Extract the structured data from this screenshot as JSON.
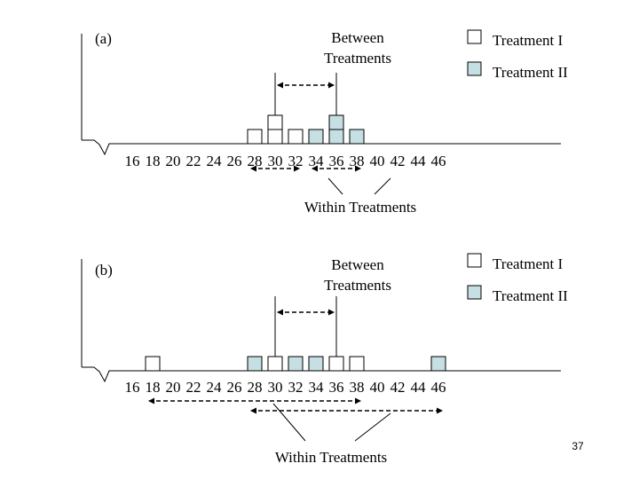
{
  "slide_number": "37",
  "legend": {
    "treatment1": {
      "label": "Treatment I",
      "color": "#ffffff"
    },
    "treatment2": {
      "label": "Treatment II",
      "color": "#c5dfe2"
    }
  },
  "annotations": {
    "between_line1": "Between",
    "between_line2": "Treatments",
    "within": "Within Treatments"
  },
  "axis": {
    "ticks": [
      16,
      18,
      20,
      22,
      24,
      26,
      28,
      30,
      32,
      34,
      36,
      38,
      40,
      42,
      44,
      46
    ],
    "min": 16,
    "max": 46
  },
  "panels": [
    {
      "id": "a",
      "label": "(a)",
      "treatment1_scores": [
        28,
        30,
        30,
        32
      ],
      "treatment2_scores": [
        34,
        36,
        36,
        38
      ],
      "treatment1_mean": 30,
      "treatment2_mean": 36,
      "within_ranges": [
        [
          28,
          32
        ],
        [
          34,
          38
        ]
      ]
    },
    {
      "id": "b",
      "label": "(b)",
      "treatment1_scores": [
        18,
        30,
        36,
        38
      ],
      "treatment2_scores": [
        28,
        32,
        34,
        46
      ],
      "treatment1_mean": 30,
      "treatment2_mean": 36,
      "within_ranges": [
        [
          18,
          38
        ],
        [
          28,
          46
        ]
      ]
    }
  ]
}
